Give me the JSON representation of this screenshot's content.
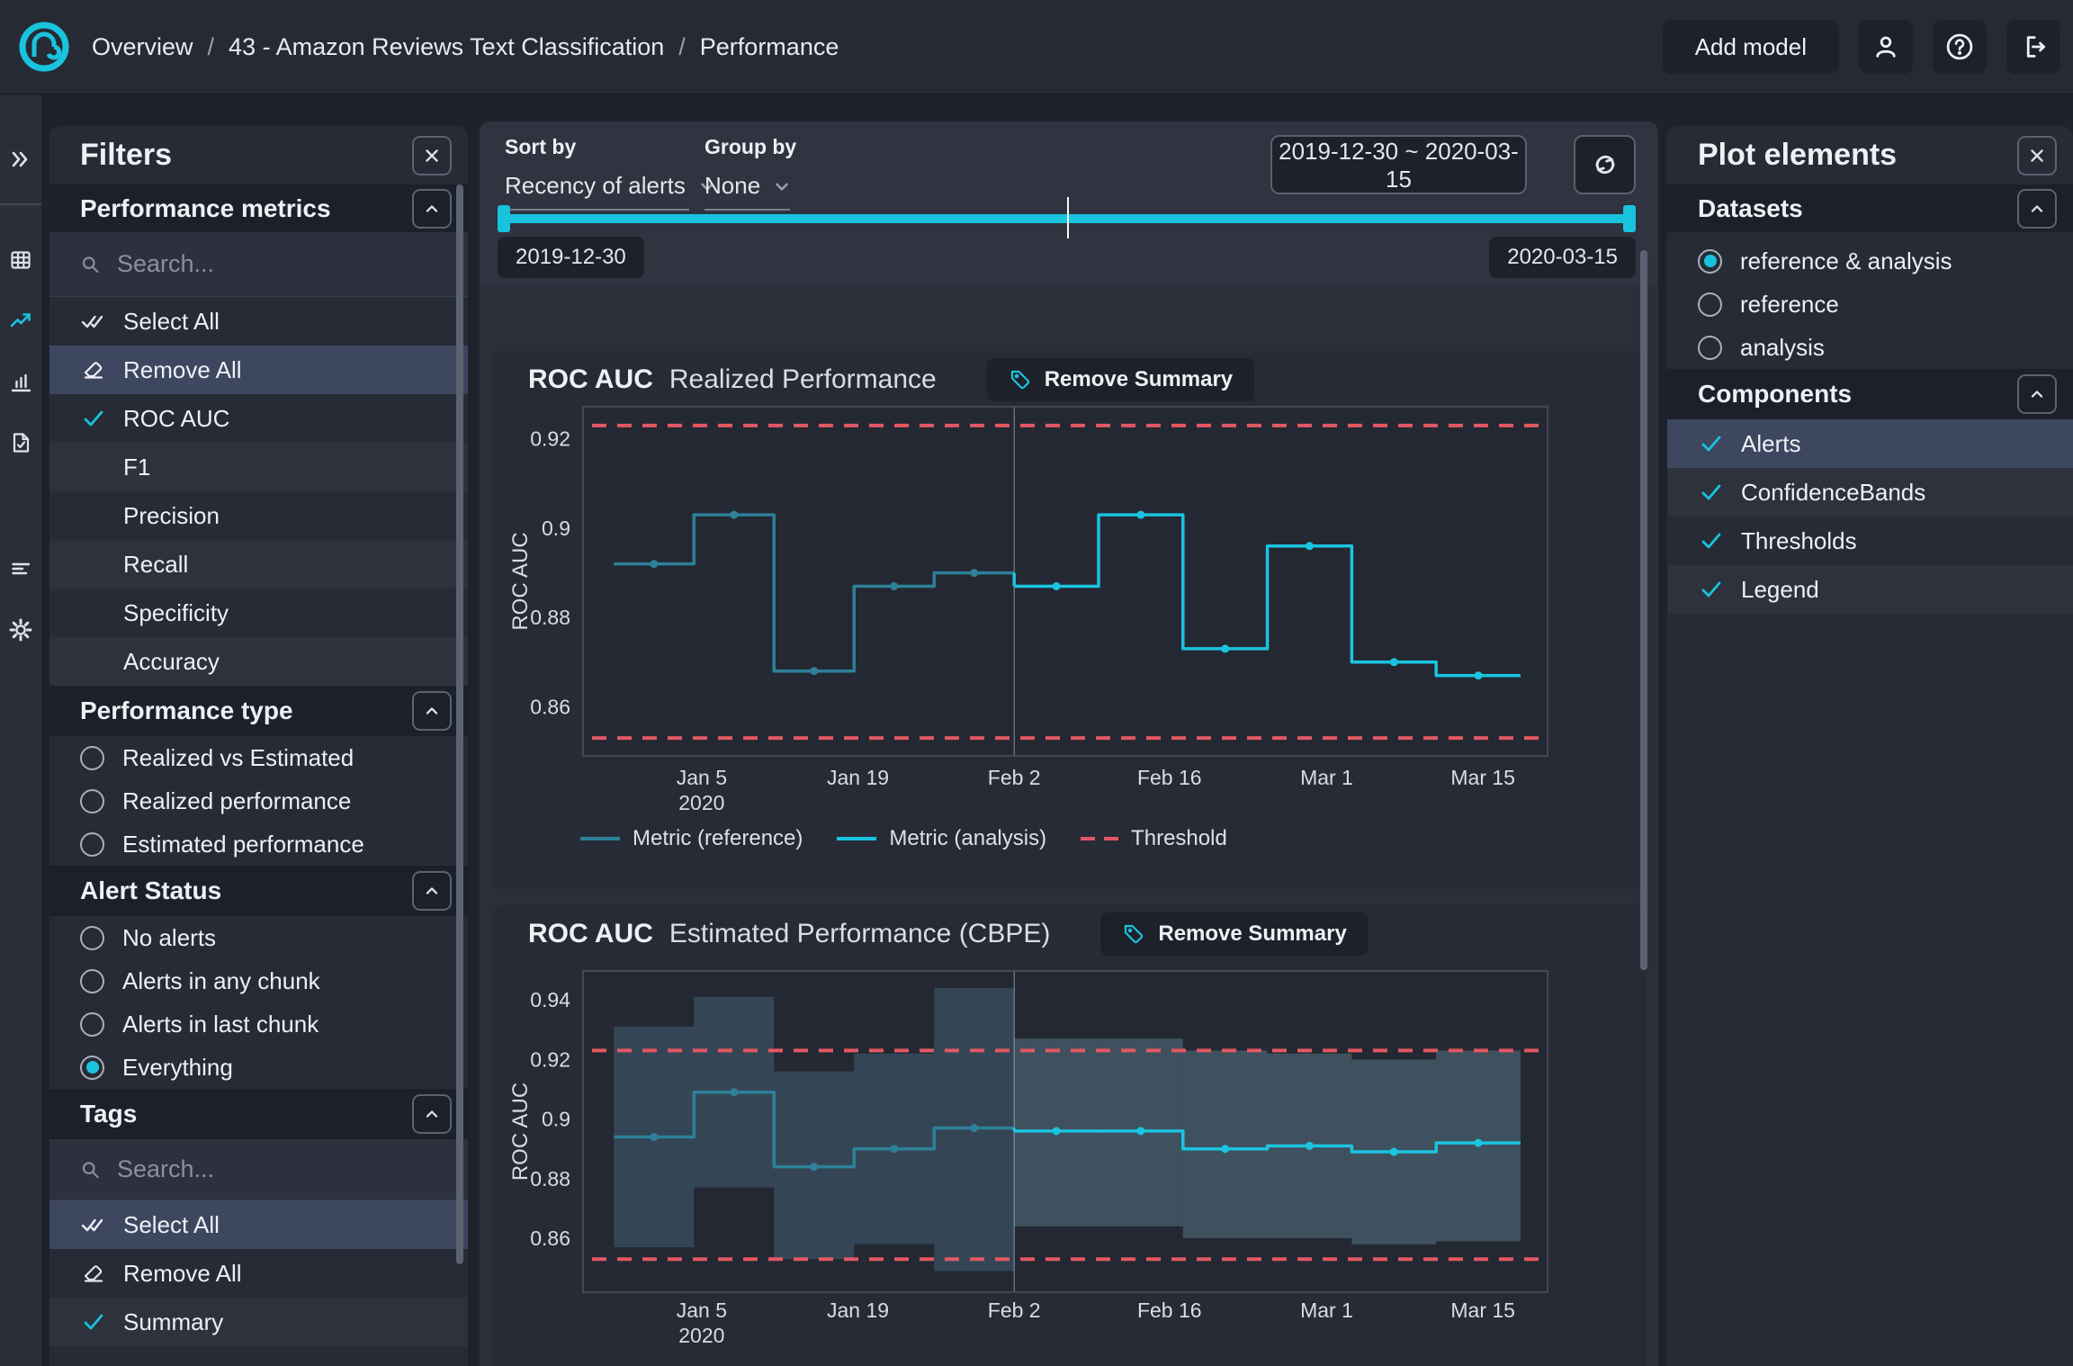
{
  "colors": {
    "accent": "#19c3dd",
    "reference_line": "#2e8099",
    "analysis_line": "#1ac4e0",
    "threshold": "#e25863",
    "band_reference": "rgba(100,160,185,0.26)",
    "band_analysis": "rgba(125,180,200,0.30)"
  },
  "topbar": {
    "breadcrumb": {
      "items": [
        "Overview",
        "43 - Amazon Reviews Text Classification",
        "Performance"
      ],
      "separator": "/"
    },
    "add_model": "Add model"
  },
  "filters": {
    "title": "Filters",
    "performance_metrics": {
      "title": "Performance metrics",
      "search_placeholder": "Search...",
      "select_all": "Select All",
      "remove_all": "Remove All",
      "metrics": [
        {
          "label": "ROC AUC",
          "checked": true
        },
        {
          "label": "F1",
          "checked": false
        },
        {
          "label": "Precision",
          "checked": false
        },
        {
          "label": "Recall",
          "checked": false
        },
        {
          "label": "Specificity",
          "checked": false
        },
        {
          "label": "Accuracy",
          "checked": false
        }
      ]
    },
    "performance_type": {
      "title": "Performance type",
      "options": [
        {
          "label": "Realized vs Estimated",
          "selected": false
        },
        {
          "label": "Realized performance",
          "selected": false
        },
        {
          "label": "Estimated performance",
          "selected": false
        }
      ]
    },
    "alert_status": {
      "title": "Alert Status",
      "options": [
        {
          "label": "No alerts",
          "selected": false
        },
        {
          "label": "Alerts in any chunk",
          "selected": false
        },
        {
          "label": "Alerts in last chunk",
          "selected": false
        },
        {
          "label": "Everything",
          "selected": true
        }
      ]
    },
    "tags": {
      "title": "Tags",
      "search_placeholder": "Search...",
      "select_all": "Select All",
      "remove_all": "Remove All",
      "items": [
        {
          "label": "Summary",
          "checked": true
        }
      ]
    }
  },
  "toolbar": {
    "sort_by": {
      "label": "Sort by",
      "value": "Recency of alerts"
    },
    "group_by": {
      "label": "Group by",
      "value": "None"
    },
    "date_range": "2019-12-30 ~ 2020-03-15",
    "slider": {
      "start_label": "2019-12-30",
      "end_label": "2020-03-15"
    }
  },
  "charts": [
    {
      "metric": "ROC AUC",
      "subtitle": "Realized Performance",
      "action": "Remove Summary"
    },
    {
      "metric": "ROC AUC",
      "subtitle": "Estimated Performance (CBPE)",
      "action": "Remove Summary"
    }
  ],
  "chart_data": [
    {
      "type": "line",
      "title": "ROC AUC Realized Performance",
      "ylabel": "ROC AUC",
      "y_ticks": [
        0.86,
        0.88,
        0.9,
        0.92
      ],
      "ylim": [
        0.849,
        0.9272
      ],
      "x_ticks": [
        "Jan 5",
        "Jan 19",
        "Feb 2",
        "Feb 16",
        "Mar 1",
        "Mar 15"
      ],
      "x_tick_year": "2020",
      "partition_boundary": "Feb 2",
      "threshold_upper": 0.923,
      "threshold_lower": 0.853,
      "series": [
        {
          "name": "Metric (reference)",
          "values": [
            0.892,
            0.903,
            0.868,
            0.887,
            0.89
          ]
        },
        {
          "name": "Metric (analysis)",
          "values": [
            0.887,
            0.903,
            0.873,
            0.896,
            0.87,
            0.867
          ]
        }
      ],
      "legend": [
        "Metric (reference)",
        "Metric (analysis)",
        "Threshold"
      ],
      "legend_position": "bottom"
    },
    {
      "type": "line",
      "title": "ROC AUC Estimated Performance (CBPE)",
      "ylabel": "ROC AUC",
      "y_ticks": [
        0.86,
        0.88,
        0.9,
        0.92,
        0.94
      ],
      "ylim": [
        0.8419,
        0.9497
      ],
      "x_ticks": [
        "Jan 5",
        "Jan 19",
        "Feb 2",
        "Feb 16",
        "Mar 1",
        "Mar 15"
      ],
      "x_tick_year": "2020",
      "partition_boundary": "Feb 2",
      "threshold_upper": 0.923,
      "threshold_lower": 0.853,
      "series": [
        {
          "name": "Metric (reference)",
          "values": [
            0.894,
            0.909,
            0.884,
            0.89,
            0.897
          ],
          "band_upper": [
            0.931,
            0.941,
            0.916,
            0.922,
            0.944
          ],
          "band_lower": [
            0.857,
            0.877,
            0.853,
            0.858,
            0.849
          ]
        },
        {
          "name": "Metric (analysis)",
          "values": [
            0.896,
            0.896,
            0.89,
            0.891,
            0.889,
            0.892
          ],
          "band_upper": [
            0.927,
            0.927,
            0.923,
            0.922,
            0.92,
            0.923
          ],
          "band_lower": [
            0.864,
            0.864,
            0.86,
            0.86,
            0.858,
            0.859
          ]
        }
      ],
      "legend": [
        "Metric (reference)",
        "Metric (analysis)",
        "Threshold"
      ],
      "legend_position": "bottom"
    }
  ],
  "plot_elements": {
    "title": "Plot elements",
    "datasets": {
      "title": "Datasets",
      "options": [
        {
          "label": "reference & analysis",
          "selected": true
        },
        {
          "label": "reference",
          "selected": false
        },
        {
          "label": "analysis",
          "selected": false
        }
      ]
    },
    "components": {
      "title": "Components",
      "items": [
        {
          "label": "Alerts",
          "checked": true,
          "highlighted": true
        },
        {
          "label": "ConfidenceBands",
          "checked": true,
          "highlighted": false
        },
        {
          "label": "Thresholds",
          "checked": true,
          "highlighted": false
        },
        {
          "label": "Legend",
          "checked": true,
          "highlighted": false
        }
      ]
    }
  }
}
